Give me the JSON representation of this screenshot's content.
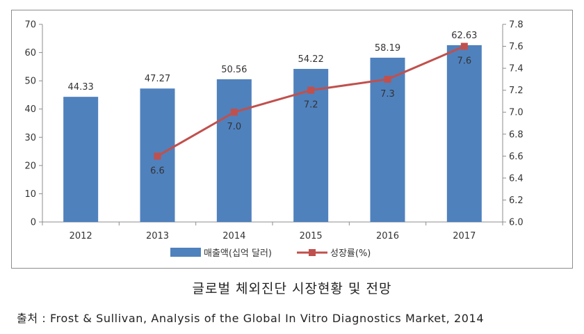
{
  "chart_data": {
    "type": "bar",
    "categories": [
      "2012",
      "2013",
      "2014",
      "2015",
      "2016",
      "2017"
    ],
    "series": [
      {
        "name": "매출액(십억 달러)",
        "type": "bar",
        "axis": "left",
        "color": "#4f81bd",
        "values": [
          44.33,
          47.27,
          50.56,
          54.22,
          58.19,
          62.63
        ]
      },
      {
        "name": "성장률(%)",
        "type": "line",
        "axis": "right",
        "color": "#c0504d",
        "values": [
          null,
          6.6,
          7.0,
          7.2,
          7.3,
          7.6
        ]
      }
    ],
    "y_left": {
      "min": 0,
      "max": 70,
      "step": 10
    },
    "y_right": {
      "min": 6.0,
      "max": 7.8,
      "step": 0.2
    },
    "legend_position": "bottom",
    "grid": false
  },
  "caption": "글로벌 체외진단 시장현황 및 전망",
  "source": "출처 : Frost & Sullivan, Analysis of the Global In Vitro Diagnostics Market, 2014"
}
